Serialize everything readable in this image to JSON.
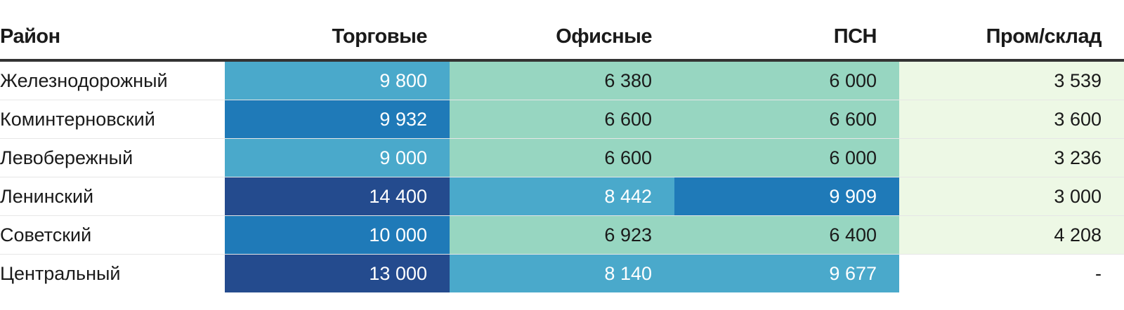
{
  "chart_data": {
    "type": "table",
    "columns": [
      "Район",
      "Торговые",
      "Офисные",
      "ПСН",
      "Пром/склад"
    ],
    "rows": [
      {
        "name": "Железнодорожный",
        "values": [
          "9 800",
          "6 380",
          "6 000",
          "3 539"
        ],
        "num": [
          9800,
          6380,
          6000,
          3539
        ]
      },
      {
        "name": "Коминтерновский",
        "values": [
          "9 932",
          "6 600",
          "6 600",
          "3 600"
        ],
        "num": [
          9932,
          6600,
          6600,
          3600
        ]
      },
      {
        "name": "Левобережный",
        "values": [
          "9 000",
          "6 600",
          "6 000",
          "3 236"
        ],
        "num": [
          9000,
          6600,
          6000,
          3236
        ]
      },
      {
        "name": "Ленинский",
        "values": [
          "14 400",
          "8 442",
          "9 909",
          "3 000"
        ],
        "num": [
          14400,
          8442,
          9909,
          3000
        ]
      },
      {
        "name": "Советский",
        "values": [
          "10 000",
          "6 923",
          "6 400",
          "4 208"
        ],
        "num": [
          10000,
          6923,
          6400,
          4208
        ]
      },
      {
        "name": "Центральный",
        "values": [
          "13 000",
          "8 140",
          "9 677",
          "-"
        ],
        "num": [
          13000,
          8140,
          9677,
          null
        ]
      }
    ],
    "color_scale": [
      {
        "min": 12000,
        "color": "#244b8e",
        "text": "#ffffff"
      },
      {
        "min": 9900,
        "color": "#1f7ab8",
        "text": "#ffffff"
      },
      {
        "min": 7000,
        "color": "#4aa9cb",
        "text": "#ffffff"
      },
      {
        "min": 5000,
        "color": "#97d6c1",
        "text": "#1a1a1a"
      },
      {
        "min": 0,
        "color": "#edf8e5",
        "text": "#1a1a1a"
      }
    ],
    "empty_color": "#ffffff"
  }
}
